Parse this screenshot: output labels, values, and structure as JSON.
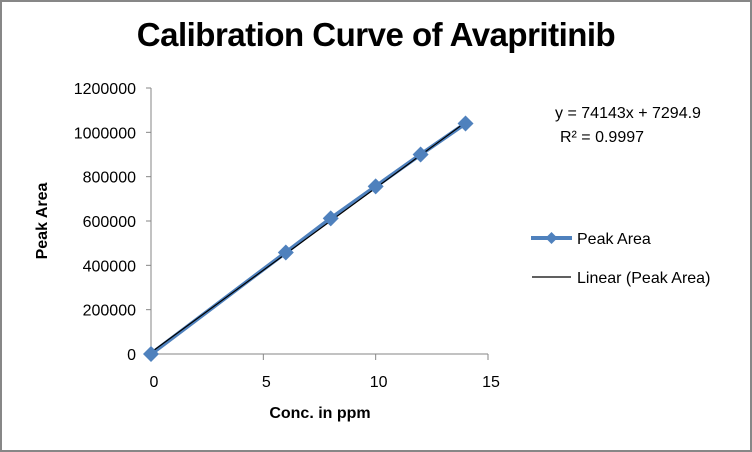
{
  "chart_data": {
    "type": "scatter",
    "title": "Calibration Curve of Avapritinib",
    "xlabel": "Conc. in ppm",
    "ylabel": "Peak Area",
    "xlim": [
      0,
      15
    ],
    "ylim": [
      0,
      1200000
    ],
    "x_ticks": [
      0,
      5,
      10,
      15
    ],
    "y_ticks": [
      0,
      200000,
      400000,
      600000,
      800000,
      1000000,
      1200000
    ],
    "x_tick_labels": [
      "0",
      "5",
      "10",
      "15"
    ],
    "y_tick_labels": [
      "0",
      "200000",
      "400000",
      "600000",
      "800000",
      "1000000",
      "1200000"
    ],
    "grid": false,
    "legend_position": "right",
    "series": [
      {
        "name": "Peak Area",
        "marker": "diamond",
        "color": "#4F81BD",
        "x": [
          0,
          6,
          8,
          10,
          12,
          14
        ],
        "y": [
          0,
          458000,
          612000,
          756000,
          900000,
          1040000
        ]
      }
    ],
    "trendline": {
      "name": "Linear (Peak Area)",
      "type": "linear",
      "color": "#000000",
      "slope": 74143,
      "intercept": 7294.9,
      "equation": "y = 74143x + 7294.9",
      "r_squared_label": "R² = 0.9997"
    },
    "legend": [
      "Peak Area",
      "Linear (Peak Area)"
    ]
  }
}
